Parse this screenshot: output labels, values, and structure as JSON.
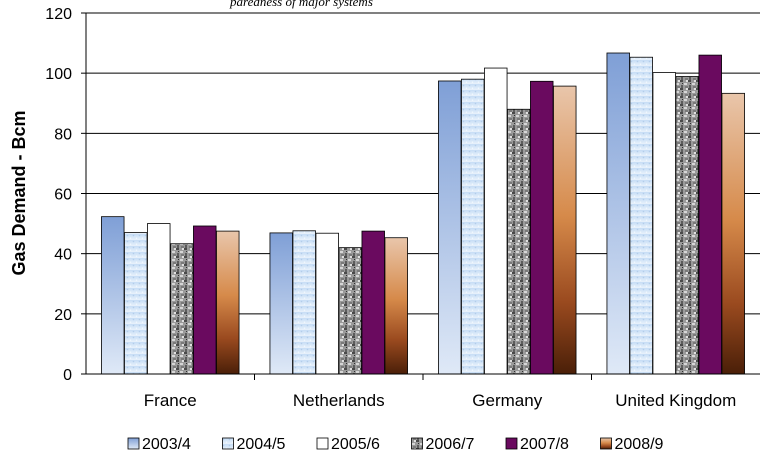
{
  "top_text": "paredness of major systems",
  "chart_data": {
    "type": "bar",
    "categories": [
      "France",
      "Netherlands",
      "Germany",
      "United Kingdom"
    ],
    "series": [
      {
        "name": "2003/4",
        "values": [
          52.3,
          46.9,
          97.4,
          106.7
        ],
        "color": "#8eaadb"
      },
      {
        "name": "2004/5",
        "values": [
          47.0,
          47.6,
          98.0,
          105.3
        ],
        "color": "#cfe3f7"
      },
      {
        "name": "2005/6",
        "values": [
          50.0,
          46.8,
          101.7,
          100.2
        ],
        "color": "#ffffff"
      },
      {
        "name": "2006/7",
        "values": [
          43.3,
          42.0,
          88.0,
          98.9
        ],
        "color": "#8c8c8c"
      },
      {
        "name": "2007/8",
        "values": [
          49.2,
          47.5,
          97.3,
          106.0
        ],
        "color": "#6a0a5f"
      },
      {
        "name": "2008/9",
        "values": [
          47.5,
          45.3,
          95.7,
          93.3
        ],
        "color": "#d49a6a"
      }
    ],
    "ylabel": "Gas Demand - Bcm",
    "xlabel": "",
    "ylim": [
      0,
      120
    ],
    "yticks": [
      0,
      20,
      40,
      60,
      80,
      100,
      120
    ],
    "grid": true,
    "legend_position": "bottom"
  }
}
